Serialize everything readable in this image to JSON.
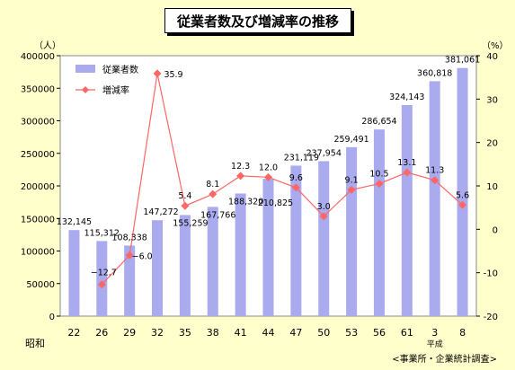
{
  "chart_data": {
    "type": "bar",
    "title": "従業者数及び増減率の推移",
    "categories": [
      "22",
      "26",
      "29",
      "32",
      "35",
      "38",
      "41",
      "44",
      "47",
      "50",
      "53",
      "56",
      "61",
      "3",
      "8"
    ],
    "era_labels": {
      "showa": "昭和",
      "heisei": "平成"
    },
    "left_unit": "（人）",
    "right_unit": "（%）",
    "ylim": [
      0,
      400000
    ],
    "y2lim": [
      -20,
      40
    ],
    "y_ticks": [
      0,
      50000,
      100000,
      150000,
      200000,
      250000,
      300000,
      350000,
      400000
    ],
    "y2_ticks": [
      -20,
      -10,
      0,
      10,
      20,
      30,
      40
    ],
    "series": [
      {
        "name": "従業者数",
        "type": "bar",
        "color": "#aaaaee",
        "values": [
          132145,
          115312,
          108338,
          147272,
          155259,
          167766,
          188320,
          210825,
          231119,
          237954,
          259491,
          286654,
          324143,
          360818,
          381061
        ],
        "labels": [
          "132,145",
          "115,312",
          "108,338",
          "147,272",
          "155,259",
          "167,766",
          "188,320",
          "210,825",
          "231,119",
          "237,954",
          "259,491",
          "286,654",
          "324,143",
          "360,818",
          "381,061"
        ]
      },
      {
        "name": "増減率",
        "type": "line",
        "color": "#ff6666",
        "values": [
          null,
          -12.7,
          -6.0,
          35.9,
          5.4,
          8.1,
          12.3,
          12.0,
          9.6,
          3.0,
          9.1,
          10.5,
          13.1,
          11.3,
          5.6
        ],
        "labels": [
          "",
          "−12.7",
          "−6.0",
          "35.9",
          "5.4",
          "8.1",
          "12.3",
          "12.0",
          "9.6",
          "3.0",
          "9.1",
          "10.5",
          "13.1",
          "11.3",
          "5.6"
        ]
      }
    ],
    "legend_position": "top-left",
    "grid": false
  },
  "source_note": "<事業所・企業統計調査>"
}
